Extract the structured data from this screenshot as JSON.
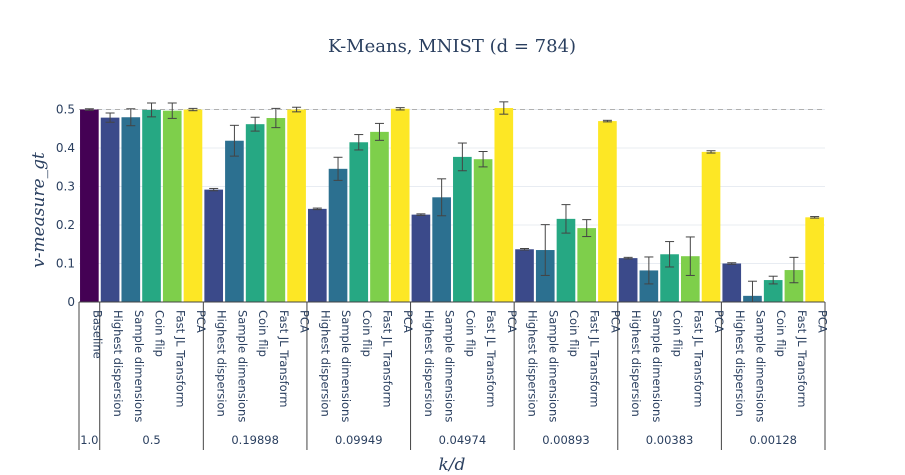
{
  "chart_data": {
    "type": "bar",
    "title": "K-Means, MNIST (d = 784)",
    "xlabel": "k/d",
    "ylabel": "v-measure_gt",
    "ylim": [
      0,
      0.53
    ],
    "yticks": [
      0,
      0.1,
      0.2,
      0.3,
      0.4,
      0.5
    ],
    "ytick_labels": [
      "0",
      "0.1",
      "0.2",
      "0.3",
      "0.4",
      "0.5"
    ],
    "reference_line": 0.5,
    "colors": {
      "Baseline": "#440154",
      "Highest dispersion": "#3b4a8a",
      "Sample dimensions": "#2c7090",
      "Coin flip": "#26a883",
      "Fast JL Transform": "#7ecf4b",
      "PCA": "#fde725"
    },
    "groups": [
      {
        "label": "1.0",
        "bars": [
          {
            "method": "Baseline",
            "value": 0.5,
            "err": 0.002
          }
        ]
      },
      {
        "label": "0.5",
        "bars": [
          {
            "method": "Highest dispersion",
            "value": 0.479,
            "err": 0.012
          },
          {
            "method": "Sample dimensions",
            "value": 0.48,
            "err": 0.022
          },
          {
            "method": "Coin flip",
            "value": 0.499,
            "err": 0.018
          },
          {
            "method": "Fast JL Transform",
            "value": 0.497,
            "err": 0.02
          },
          {
            "method": "PCA",
            "value": 0.5,
            "err": 0.003
          }
        ]
      },
      {
        "label": "0.19898",
        "bars": [
          {
            "method": "Highest dispersion",
            "value": 0.292,
            "err": 0.003
          },
          {
            "method": "Sample dimensions",
            "value": 0.419,
            "err": 0.04
          },
          {
            "method": "Coin flip",
            "value": 0.462,
            "err": 0.018
          },
          {
            "method": "Fast JL Transform",
            "value": 0.478,
            "err": 0.025
          },
          {
            "method": "PCA",
            "value": 0.5,
            "err": 0.006
          }
        ]
      },
      {
        "label": "0.09949",
        "bars": [
          {
            "method": "Highest dispersion",
            "value": 0.242,
            "err": 0.002
          },
          {
            "method": "Sample dimensions",
            "value": 0.346,
            "err": 0.03
          },
          {
            "method": "Coin flip",
            "value": 0.415,
            "err": 0.02
          },
          {
            "method": "Fast JL Transform",
            "value": 0.442,
            "err": 0.022
          },
          {
            "method": "PCA",
            "value": 0.502,
            "err": 0.003
          }
        ]
      },
      {
        "label": "0.04974",
        "bars": [
          {
            "method": "Highest dispersion",
            "value": 0.227,
            "err": 0.002
          },
          {
            "method": "Sample dimensions",
            "value": 0.272,
            "err": 0.048
          },
          {
            "method": "Coin flip",
            "value": 0.377,
            "err": 0.036
          },
          {
            "method": "Fast JL Transform",
            "value": 0.371,
            "err": 0.02
          },
          {
            "method": "PCA",
            "value": 0.504,
            "err": 0.016
          }
        ]
      },
      {
        "label": "0.00893",
        "bars": [
          {
            "method": "Highest dispersion",
            "value": 0.137,
            "err": 0.002
          },
          {
            "method": "Sample dimensions",
            "value": 0.135,
            "err": 0.066
          },
          {
            "method": "Coin flip",
            "value": 0.216,
            "err": 0.037
          },
          {
            "method": "Fast JL Transform",
            "value": 0.192,
            "err": 0.022
          },
          {
            "method": "PCA",
            "value": 0.47,
            "err": 0.002
          }
        ]
      },
      {
        "label": "0.00383",
        "bars": [
          {
            "method": "Highest dispersion",
            "value": 0.114,
            "err": 0.002
          },
          {
            "method": "Sample dimensions",
            "value": 0.082,
            "err": 0.035
          },
          {
            "method": "Coin flip",
            "value": 0.124,
            "err": 0.033
          },
          {
            "method": "Fast JL Transform",
            "value": 0.119,
            "err": 0.05
          },
          {
            "method": "PCA",
            "value": 0.39,
            "err": 0.003
          }
        ]
      },
      {
        "label": "0.00128",
        "bars": [
          {
            "method": "Highest dispersion",
            "value": 0.1,
            "err": 0.002
          },
          {
            "method": "Sample dimensions",
            "value": 0.016,
            "err": 0.038
          },
          {
            "method": "Coin flip",
            "value": 0.057,
            "err": 0.01
          },
          {
            "method": "Fast JL Transform",
            "value": 0.083,
            "err": 0.033
          },
          {
            "method": "PCA",
            "value": 0.22,
            "err": 0.002
          }
        ]
      }
    ]
  }
}
